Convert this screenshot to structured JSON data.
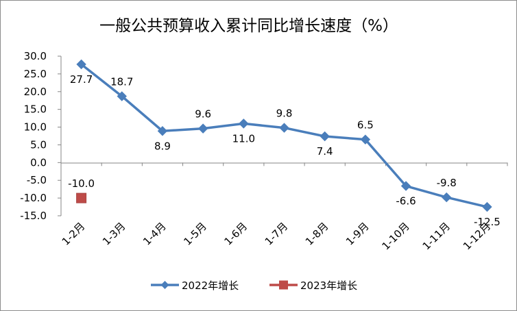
{
  "chart_data": {
    "type": "line",
    "title": "一般公共预算收入累计同比增长速度（%）",
    "xlabel": "",
    "ylabel": "",
    "categories": [
      "1-2月",
      "1-3月",
      "1-4月",
      "1-5月",
      "1-6月",
      "1-7月",
      "1-8月",
      "1-9月",
      "1-10月",
      "1-11月",
      "1-12月"
    ],
    "ylim": [
      -15.0,
      30.0
    ],
    "yticks": [
      "30.0",
      "25.0",
      "20.0",
      "15.0",
      "10.0",
      "5.0",
      "0.0",
      "-5.0",
      "-10.0",
      "-15.0"
    ],
    "ytick_values": [
      30,
      25,
      20,
      15,
      10,
      5,
      0,
      -5,
      -10,
      -15
    ],
    "grid": false,
    "legend_position": "bottom",
    "series": [
      {
        "name": "2022年增长",
        "color": "#4a7ebb",
        "marker": "diamond",
        "values": [
          27.7,
          18.7,
          8.9,
          9.6,
          11.0,
          9.8,
          7.4,
          6.5,
          -6.6,
          -9.8,
          -12.5
        ],
        "labels": [
          "27.7",
          "18.7",
          "8.9",
          "9.6",
          "11.0",
          "9.8",
          "7.4",
          "6.5",
          "-6.6",
          "-9.8",
          "-12.5"
        ],
        "label_positions": [
          "below",
          "above",
          "below",
          "above",
          "below",
          "above",
          "below",
          "above",
          "below",
          "above",
          "below"
        ]
      },
      {
        "name": "2023年增长",
        "color": "#be4b48",
        "marker": "square",
        "values": [
          -10.0,
          null,
          null,
          null,
          null,
          null,
          null,
          null,
          null,
          null,
          null
        ],
        "labels": [
          "-10.0",
          null,
          null,
          null,
          null,
          null,
          null,
          null,
          null,
          null,
          null
        ],
        "label_positions": [
          "above",
          null,
          null,
          null,
          null,
          null,
          null,
          null,
          null,
          null,
          null
        ]
      }
    ]
  }
}
